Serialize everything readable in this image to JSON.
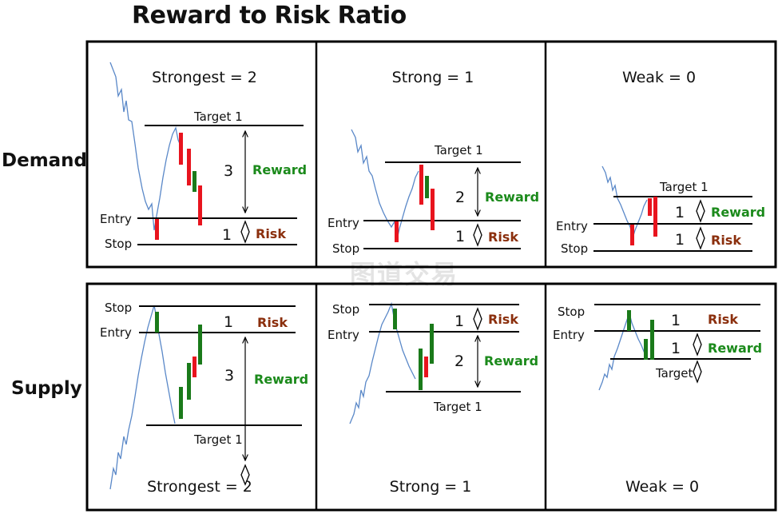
{
  "title": "Reward to Risk Ratio",
  "watermark": "图道交易",
  "row_labels": {
    "demand": "Demand",
    "supply": "Supply"
  },
  "colors": {
    "bullish": "#1a7a1a",
    "bearish": "#e8141e",
    "price": "#5a88c8",
    "reward_text": "#1b8a1b",
    "risk_text": "#8b2f0d",
    "line": "#000000"
  },
  "panels": [
    {
      "id": "demand-strongest",
      "heading": "Strongest = 2",
      "target_label": "Target 1",
      "entry_label": "Entry",
      "stop_label": "Stop",
      "reward_number": "3",
      "risk_number": "1",
      "reward_label": "Reward",
      "risk_label": "Risk"
    },
    {
      "id": "demand-strong",
      "heading": "Strong = 1",
      "target_label": "Target 1",
      "entry_label": "Entry",
      "stop_label": "Stop",
      "reward_number": "2",
      "risk_number": "1",
      "reward_label": "Reward",
      "risk_label": "Risk"
    },
    {
      "id": "demand-weak",
      "heading": "Weak = 0",
      "target_label": "Target 1",
      "entry_label": "Entry",
      "stop_label": "Stop",
      "reward_number": "1",
      "risk_number": "1",
      "reward_label": "Reward",
      "risk_label": "Risk"
    },
    {
      "id": "supply-strongest",
      "heading": "Strongest = 2",
      "target_label": "Target 1",
      "entry_label": "Entry",
      "stop_label": "Stop",
      "reward_number": "3",
      "risk_number": "1",
      "reward_label": "Reward",
      "risk_label": "Risk"
    },
    {
      "id": "supply-strong",
      "heading": "Strong = 1",
      "target_label": "Target 1",
      "entry_label": "Entry",
      "stop_label": "Stop",
      "reward_number": "2",
      "risk_number": "1",
      "reward_label": "Reward",
      "risk_label": "Risk"
    },
    {
      "id": "supply-weak",
      "heading": "Weak = 0",
      "target_label": "Target",
      "entry_label": "Entry",
      "stop_label": "Stop",
      "reward_number": "1",
      "risk_number": "1",
      "reward_label": "Reward",
      "risk_label": "Risk"
    }
  ]
}
